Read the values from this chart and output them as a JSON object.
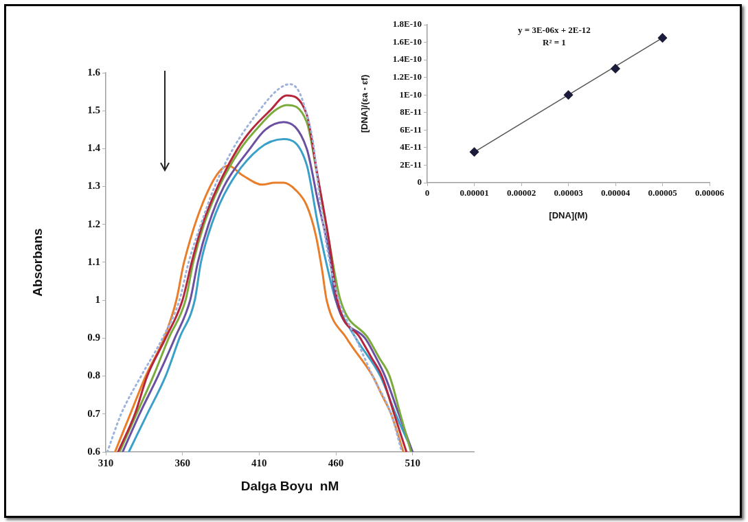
{
  "chart_data": [
    {
      "type": "line",
      "xlabel": "Dalga Boyu  nM",
      "ylabel": "Absorbans",
      "xlim": [
        310,
        550
      ],
      "xticks": [
        310,
        360,
        410,
        460,
        510
      ],
      "ylim": [
        0.6,
        1.6
      ],
      "yticks": [
        0.6,
        0.7,
        0.8,
        0.9,
        1,
        1.1,
        1.2,
        1.3,
        1.4,
        1.5,
        1.6
      ],
      "series": [
        {
          "color": "#9db3dc",
          "line_style": "dotted",
          "x": [
            311,
            320,
            333,
            347,
            358,
            364,
            372,
            381,
            393,
            410,
            422,
            430,
            436,
            441,
            445,
            450,
            456,
            462,
            473,
            484,
            496,
            503
          ],
          "values": [
            0.6,
            0.7,
            0.8,
            0.9,
            1.0,
            1.1,
            1.2,
            1.3,
            1.4,
            1.5,
            1.555,
            1.57,
            1.55,
            1.49,
            1.42,
            1.25,
            1.1,
            1.0,
            0.9,
            0.8,
            0.7,
            0.6
          ]
        },
        {
          "color": "#b5253c",
          "x": [
            318,
            329,
            337,
            349,
            360,
            366,
            373,
            383,
            396,
            405,
            417,
            428,
            441,
            448,
            456,
            461,
            476,
            483,
            490,
            498,
            506
          ],
          "values": [
            0.6,
            0.7,
            0.8,
            0.9,
            1.0,
            1.1,
            1.2,
            1.3,
            1.4,
            1.45,
            1.5,
            1.54,
            1.49,
            1.33,
            1.145,
            1.0,
            0.9,
            0.85,
            0.8,
            0.7,
            0.6
          ]
        },
        {
          "color": "#7aab3c",
          "x": [
            319,
            330,
            341,
            351,
            362,
            367,
            374,
            384,
            398,
            408,
            420,
            428,
            441,
            448,
            456,
            463,
            481,
            488,
            495,
            502,
            509
          ],
          "values": [
            0.6,
            0.7,
            0.8,
            0.9,
            1.0,
            1.1,
            1.2,
            1.3,
            1.4,
            1.45,
            1.5,
            1.515,
            1.47,
            1.326,
            1.145,
            1.0,
            0.9,
            0.85,
            0.8,
            0.7,
            0.6
          ]
        },
        {
          "color": "#6b4fa0",
          "x": [
            321,
            332,
            344,
            355,
            365,
            370,
            377,
            387,
            404,
            414,
            426,
            441,
            448,
            456,
            460,
            479,
            486,
            492,
            501,
            510
          ],
          "values": [
            0.6,
            0.7,
            0.8,
            0.9,
            1.0,
            1.1,
            1.2,
            1.3,
            1.4,
            1.45,
            1.47,
            1.4,
            1.267,
            1.116,
            1.0,
            0.9,
            0.85,
            0.8,
            0.7,
            0.6
          ]
        },
        {
          "color": "#3aa0c8",
          "x": [
            325,
            337,
            349,
            358,
            368,
            372,
            379,
            390,
            410,
            426,
            441,
            448,
            456,
            460,
            473,
            489,
            499,
            510
          ],
          "values": [
            0.6,
            0.7,
            0.8,
            0.9,
            1.0,
            1.1,
            1.2,
            1.3,
            1.4,
            1.425,
            1.357,
            1.207,
            1.06,
            1.0,
            0.9,
            0.8,
            0.7,
            0.6
          ]
        },
        {
          "color": "#e87d2a",
          "x": [
            316,
            326,
            336,
            348,
            356,
            361,
            378,
            390,
            399,
            412,
            420,
            426,
            434,
            441,
            447,
            451,
            454,
            467,
            484,
            490,
            496,
            504
          ],
          "values": [
            0.6,
            0.7,
            0.8,
            0.9,
            1.0,
            1.1,
            1.3,
            1.355,
            1.33,
            1.305,
            1.31,
            1.31,
            1.29,
            1.25,
            1.17,
            1.08,
            1.0,
            0.9,
            0.8,
            0.75,
            0.7,
            0.6
          ]
        }
      ]
    },
    {
      "type": "scatter",
      "xlabel": "[DNA](M)",
      "ylabel": "[DNA]/(εa - εf)",
      "annotations": [
        "y = 3E-06x + 2E-12",
        "R² = 1"
      ],
      "xlim": [
        0,
        6e-05
      ],
      "xticks": [
        0,
        {
          "value": 1e-05,
          "label": "0.00001"
        },
        {
          "value": 2e-05,
          "label": "0.00002"
        },
        {
          "value": 3e-05,
          "label": "0.00003"
        },
        {
          "value": 4e-05,
          "label": "0.00004"
        },
        {
          "value": 5e-05,
          "label": "0.00005"
        },
        {
          "value": 6e-05,
          "label": "0.00006"
        }
      ],
      "ylim": [
        0,
        1.8e-10
      ],
      "yticks": [
        0,
        {
          "value": 2e-11,
          "label": "2E-11"
        },
        {
          "value": 4e-11,
          "label": "4E-11"
        },
        {
          "value": 6e-11,
          "label": "6E-11"
        },
        {
          "value": 8e-11,
          "label": "8E-11"
        },
        {
          "value": 1e-10,
          "label": "1E-10"
        },
        {
          "value": 1.2e-10,
          "label": "1.2E-10"
        },
        {
          "value": 1.4e-10,
          "label": "1.4E-10"
        },
        {
          "value": 1.6e-10,
          "label": "1.6E-10"
        },
        {
          "value": 1.8e-10,
          "label": "1.8E-10"
        }
      ],
      "series": [
        {
          "type": "line",
          "color": "#555555",
          "x": [
            1e-05,
            5e-05
          ],
          "values": [
            3.5e-11,
            1.65e-10
          ]
        },
        {
          "type": "scatter",
          "color": "#1b1b3a",
          "marker": "diamond",
          "x": [
            1e-05,
            3e-05,
            4e-05,
            5e-05
          ],
          "values": [
            3.5e-11,
            1e-10,
            1.3e-10,
            1.65e-10
          ]
        }
      ]
    }
  ]
}
